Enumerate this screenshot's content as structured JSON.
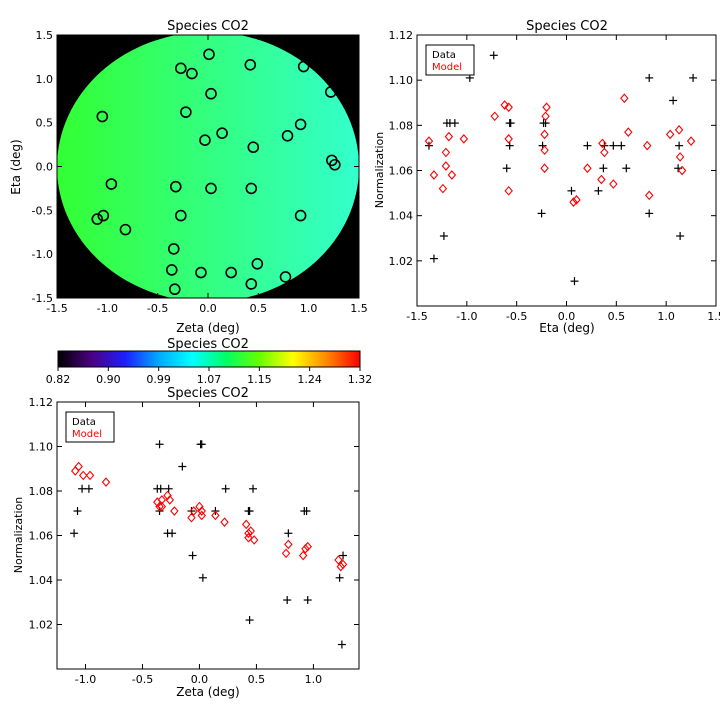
{
  "chart_data": [
    {
      "type": "scatter",
      "title": "Species CO2",
      "xlabel": "Zeta (deg)",
      "ylabel": "Eta (deg)",
      "xlim": [
        -1.5,
        1.5
      ],
      "ylim": [
        -1.5,
        1.5
      ],
      "xticks": [
        -1.5,
        -1.0,
        -0.5,
        0.0,
        0.5,
        1.0,
        1.5
      ],
      "yticks": [
        -1.5,
        -1.0,
        -0.5,
        0.0,
        0.5,
        1.0,
        1.5
      ],
      "background_color": "#000000",
      "field_colors": [
        "#33ff33",
        "#33ffcc"
      ],
      "field_color_note": "fill gradient from green (left) to cyan (right), matching colorbar ~1.02-1.09",
      "points": [
        [
          -0.27,
          1.12
        ],
        [
          -0.16,
          1.06
        ],
        [
          0.01,
          1.28
        ],
        [
          0.42,
          1.16
        ],
        [
          0.95,
          1.14
        ],
        [
          1.22,
          0.85
        ],
        [
          -1.05,
          0.57
        ],
        [
          -0.22,
          0.62
        ],
        [
          0.03,
          0.83
        ],
        [
          0.92,
          0.48
        ],
        [
          0.79,
          0.35
        ],
        [
          0.14,
          0.38
        ],
        [
          -0.03,
          0.3
        ],
        [
          0.45,
          0.22
        ],
        [
          1.23,
          0.07
        ],
        [
          1.26,
          0.02
        ],
        [
          -0.96,
          -0.2
        ],
        [
          -0.32,
          -0.23
        ],
        [
          0.03,
          -0.25
        ],
        [
          0.43,
          -0.25
        ],
        [
          -1.1,
          -0.6
        ],
        [
          -1.04,
          -0.56
        ],
        [
          -0.82,
          -0.72
        ],
        [
          -0.27,
          -0.56
        ],
        [
          0.92,
          -0.56
        ],
        [
          -0.34,
          -0.94
        ],
        [
          -0.36,
          -1.18
        ],
        [
          -0.07,
          -1.21
        ],
        [
          0.23,
          -1.21
        ],
        [
          0.49,
          -1.11
        ],
        [
          0.43,
          -1.34
        ],
        [
          0.77,
          -1.26
        ],
        [
          -0.33,
          -1.4
        ]
      ]
    },
    {
      "type": "scatter",
      "title": "Species CO2",
      "xlabel": "Eta (deg)",
      "ylabel": "Normalization",
      "xlim": [
        -1.5,
        1.5
      ],
      "ylim": [
        1.0,
        1.12
      ],
      "xticks": [
        -1.5,
        -1.0,
        -0.5,
        0.0,
        0.5,
        1.0,
        1.5
      ],
      "yticks": [
        1.02,
        1.04,
        1.06,
        1.08,
        1.1,
        1.12
      ],
      "legend": {
        "position": "top-left",
        "entries": [
          {
            "label": "Data",
            "color": "#000000"
          },
          {
            "label": "Model",
            "color": "#ff0000"
          }
        ]
      },
      "series": [
        {
          "name": "Data",
          "marker": "plus",
          "color": "#000000",
          "points": [
            [
              -0.73,
              1.111
            ],
            [
              -0.97,
              1.101
            ],
            [
              -1.38,
              1.071
            ],
            [
              -1.2,
              1.081
            ],
            [
              -1.17,
              1.081
            ],
            [
              -1.12,
              1.081
            ],
            [
              -1.23,
              1.031
            ],
            [
              -1.33,
              1.021
            ],
            [
              -0.57,
              1.081
            ],
            [
              -0.56,
              1.081
            ],
            [
              -0.57,
              1.071
            ],
            [
              -0.6,
              1.061
            ],
            [
              -0.23,
              1.081
            ],
            [
              -0.21,
              1.081
            ],
            [
              -0.24,
              1.071
            ],
            [
              -0.25,
              1.041
            ],
            [
              0.05,
              1.051
            ],
            [
              0.08,
              1.011
            ],
            [
              0.21,
              1.071
            ],
            [
              0.32,
              1.051
            ],
            [
              0.37,
              1.061
            ],
            [
              0.38,
              1.071
            ],
            [
              0.47,
              1.071
            ],
            [
              0.55,
              1.071
            ],
            [
              0.6,
              1.061
            ],
            [
              0.83,
              1.101
            ],
            [
              0.83,
              1.041
            ],
            [
              1.07,
              1.091
            ],
            [
              1.13,
              1.071
            ],
            [
              1.12,
              1.061
            ],
            [
              1.14,
              1.031
            ],
            [
              1.27,
              1.101
            ]
          ]
        },
        {
          "name": "Model",
          "marker": "diamond",
          "color": "#ff0000",
          "points": [
            [
              -1.38,
              1.073
            ],
            [
              -1.33,
              1.058
            ],
            [
              -1.24,
              1.052
            ],
            [
              -1.21,
              1.068
            ],
            [
              -1.21,
              1.062
            ],
            [
              -1.18,
              1.075
            ],
            [
              -1.15,
              1.058
            ],
            [
              -1.03,
              1.074
            ],
            [
              -0.72,
              1.084
            ],
            [
              -0.62,
              1.089
            ],
            [
              -0.58,
              1.088
            ],
            [
              -0.58,
              1.074
            ],
            [
              -0.58,
              1.051
            ],
            [
              -0.22,
              1.076
            ],
            [
              -0.22,
              1.069
            ],
            [
              -0.22,
              1.061
            ],
            [
              -0.2,
              1.088
            ],
            [
              -0.21,
              1.084
            ],
            [
              0.07,
              1.046
            ],
            [
              0.1,
              1.047
            ],
            [
              0.21,
              1.061
            ],
            [
              0.35,
              1.056
            ],
            [
              0.36,
              1.072
            ],
            [
              0.38,
              1.068
            ],
            [
              0.47,
              1.054
            ],
            [
              0.58,
              1.092
            ],
            [
              0.62,
              1.077
            ],
            [
              0.81,
              1.071
            ],
            [
              0.83,
              1.049
            ],
            [
              1.04,
              1.076
            ],
            [
              1.13,
              1.078
            ],
            [
              1.14,
              1.066
            ],
            [
              1.16,
              1.06
            ],
            [
              1.25,
              1.073
            ]
          ]
        }
      ]
    },
    {
      "type": "colorbar",
      "title": "Species CO2",
      "tick_labels": [
        "0.82",
        "0.90",
        "0.99",
        "1.07",
        "1.15",
        "1.24",
        "1.32"
      ],
      "range": [
        0.82,
        1.32
      ],
      "colors": [
        "#000000",
        "#4b0082",
        "#1e1eff",
        "#00aaff",
        "#00ffff",
        "#00ff66",
        "#66ff00",
        "#ffff00",
        "#ff8800",
        "#ff0000"
      ]
    },
    {
      "type": "scatter",
      "title": "Species CO2",
      "xlabel": "Zeta (deg)",
      "ylabel": "Normalization",
      "xlim": [
        -1.25,
        1.4
      ],
      "ylim": [
        1.0,
        1.12
      ],
      "xticks": [
        -1.0,
        -0.5,
        0.0,
        0.5,
        1.0
      ],
      "yticks": [
        1.02,
        1.04,
        1.06,
        1.08,
        1.1,
        1.12
      ],
      "legend": {
        "position": "top-left",
        "entries": [
          {
            "label": "Data",
            "color": "#000000"
          },
          {
            "label": "Model",
            "color": "#ff0000"
          }
        ]
      },
      "series": [
        {
          "name": "Data",
          "marker": "plus",
          "color": "#000000",
          "points": [
            [
              -0.82,
              1.111
            ],
            [
              -1.1,
              1.061
            ],
            [
              -1.07,
              1.071
            ],
            [
              -1.03,
              1.081
            ],
            [
              -0.97,
              1.081
            ],
            [
              -0.37,
              1.081
            ],
            [
              -0.34,
              1.081
            ],
            [
              -0.27,
              1.081
            ],
            [
              -0.35,
              1.101
            ],
            [
              -0.35,
              1.071
            ],
            [
              -0.28,
              1.061
            ],
            [
              -0.24,
              1.061
            ],
            [
              -0.15,
              1.091
            ],
            [
              -0.07,
              1.071
            ],
            [
              -0.06,
              1.051
            ],
            [
              0.01,
              1.101
            ],
            [
              0.02,
              1.101
            ],
            [
              0.03,
              1.041
            ],
            [
              0.14,
              1.071
            ],
            [
              0.23,
              1.081
            ],
            [
              0.43,
              1.071
            ],
            [
              0.44,
              1.071
            ],
            [
              0.47,
              1.081
            ],
            [
              0.44,
              1.022
            ],
            [
              0.78,
              1.061
            ],
            [
              0.77,
              1.031
            ],
            [
              0.92,
              1.071
            ],
            [
              0.94,
              1.071
            ],
            [
              0.95,
              1.031
            ],
            [
              1.23,
              1.041
            ],
            [
              1.26,
              1.051
            ],
            [
              1.25,
              1.011
            ]
          ]
        },
        {
          "name": "Model",
          "marker": "diamond",
          "color": "#ff0000",
          "points": [
            [
              -1.09,
              1.089
            ],
            [
              -1.06,
              1.091
            ],
            [
              -1.02,
              1.087
            ],
            [
              -0.96,
              1.087
            ],
            [
              -0.82,
              1.084
            ],
            [
              -0.37,
              1.075
            ],
            [
              -0.35,
              1.073
            ],
            [
              -0.33,
              1.076
            ],
            [
              -0.33,
              1.073
            ],
            [
              -0.28,
              1.078
            ],
            [
              -0.26,
              1.076
            ],
            [
              -0.22,
              1.071
            ],
            [
              -0.07,
              1.068
            ],
            [
              -0.05,
              1.071
            ],
            [
              0.0,
              1.073
            ],
            [
              0.02,
              1.071
            ],
            [
              0.02,
              1.069
            ],
            [
              0.14,
              1.069
            ],
            [
              0.22,
              1.066
            ],
            [
              0.41,
              1.065
            ],
            [
              0.43,
              1.061
            ],
            [
              0.43,
              1.059
            ],
            [
              0.45,
              1.062
            ],
            [
              0.48,
              1.058
            ],
            [
              0.76,
              1.052
            ],
            [
              0.78,
              1.056
            ],
            [
              0.91,
              1.051
            ],
            [
              0.93,
              1.054
            ],
            [
              0.95,
              1.055
            ],
            [
              1.22,
              1.049
            ],
            [
              1.24,
              1.046
            ],
            [
              1.26,
              1.047
            ]
          ]
        }
      ]
    }
  ]
}
